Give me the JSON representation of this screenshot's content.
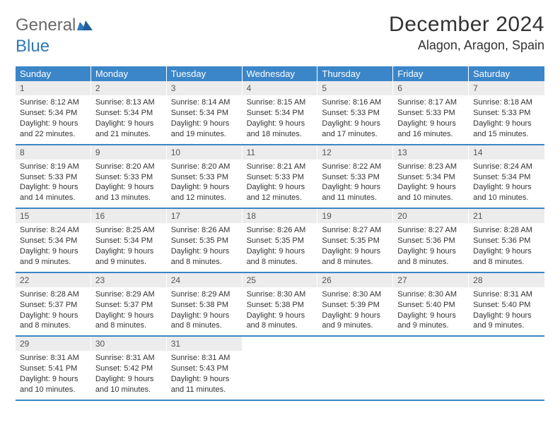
{
  "logo": {
    "text1": "General",
    "text2": "Blue"
  },
  "title": "December 2024",
  "location": "Alagon, Aragon, Spain",
  "colors": {
    "header_bg": "#3b86c8",
    "header_text": "#ffffff",
    "page_bg": "#ffffff",
    "daynum_bg": "#ececec",
    "text": "#333333",
    "logo_gray": "#6a6a6a",
    "logo_blue": "#2f77bb",
    "row_border": "#3b86c8"
  },
  "typography": {
    "title_fontsize": 30,
    "location_fontsize": 18,
    "dow_fontsize": 13,
    "body_fontsize": 11,
    "logo_fontsize": 24
  },
  "calendar": {
    "type": "table",
    "columns": [
      "Sunday",
      "Monday",
      "Tuesday",
      "Wednesday",
      "Thursday",
      "Friday",
      "Saturday"
    ],
    "weeks": [
      [
        {
          "n": "1",
          "sunrise": "Sunrise: 8:12 AM",
          "sunset": "Sunset: 5:34 PM",
          "daylight": "Daylight: 9 hours and 22 minutes."
        },
        {
          "n": "2",
          "sunrise": "Sunrise: 8:13 AM",
          "sunset": "Sunset: 5:34 PM",
          "daylight": "Daylight: 9 hours and 21 minutes."
        },
        {
          "n": "3",
          "sunrise": "Sunrise: 8:14 AM",
          "sunset": "Sunset: 5:34 PM",
          "daylight": "Daylight: 9 hours and 19 minutes."
        },
        {
          "n": "4",
          "sunrise": "Sunrise: 8:15 AM",
          "sunset": "Sunset: 5:34 PM",
          "daylight": "Daylight: 9 hours and 18 minutes."
        },
        {
          "n": "5",
          "sunrise": "Sunrise: 8:16 AM",
          "sunset": "Sunset: 5:33 PM",
          "daylight": "Daylight: 9 hours and 17 minutes."
        },
        {
          "n": "6",
          "sunrise": "Sunrise: 8:17 AM",
          "sunset": "Sunset: 5:33 PM",
          "daylight": "Daylight: 9 hours and 16 minutes."
        },
        {
          "n": "7",
          "sunrise": "Sunrise: 8:18 AM",
          "sunset": "Sunset: 5:33 PM",
          "daylight": "Daylight: 9 hours and 15 minutes."
        }
      ],
      [
        {
          "n": "8",
          "sunrise": "Sunrise: 8:19 AM",
          "sunset": "Sunset: 5:33 PM",
          "daylight": "Daylight: 9 hours and 14 minutes."
        },
        {
          "n": "9",
          "sunrise": "Sunrise: 8:20 AM",
          "sunset": "Sunset: 5:33 PM",
          "daylight": "Daylight: 9 hours and 13 minutes."
        },
        {
          "n": "10",
          "sunrise": "Sunrise: 8:20 AM",
          "sunset": "Sunset: 5:33 PM",
          "daylight": "Daylight: 9 hours and 12 minutes."
        },
        {
          "n": "11",
          "sunrise": "Sunrise: 8:21 AM",
          "sunset": "Sunset: 5:33 PM",
          "daylight": "Daylight: 9 hours and 12 minutes."
        },
        {
          "n": "12",
          "sunrise": "Sunrise: 8:22 AM",
          "sunset": "Sunset: 5:33 PM",
          "daylight": "Daylight: 9 hours and 11 minutes."
        },
        {
          "n": "13",
          "sunrise": "Sunrise: 8:23 AM",
          "sunset": "Sunset: 5:34 PM",
          "daylight": "Daylight: 9 hours and 10 minutes."
        },
        {
          "n": "14",
          "sunrise": "Sunrise: 8:24 AM",
          "sunset": "Sunset: 5:34 PM",
          "daylight": "Daylight: 9 hours and 10 minutes."
        }
      ],
      [
        {
          "n": "15",
          "sunrise": "Sunrise: 8:24 AM",
          "sunset": "Sunset: 5:34 PM",
          "daylight": "Daylight: 9 hours and 9 minutes."
        },
        {
          "n": "16",
          "sunrise": "Sunrise: 8:25 AM",
          "sunset": "Sunset: 5:34 PM",
          "daylight": "Daylight: 9 hours and 9 minutes."
        },
        {
          "n": "17",
          "sunrise": "Sunrise: 8:26 AM",
          "sunset": "Sunset: 5:35 PM",
          "daylight": "Daylight: 9 hours and 8 minutes."
        },
        {
          "n": "18",
          "sunrise": "Sunrise: 8:26 AM",
          "sunset": "Sunset: 5:35 PM",
          "daylight": "Daylight: 9 hours and 8 minutes."
        },
        {
          "n": "19",
          "sunrise": "Sunrise: 8:27 AM",
          "sunset": "Sunset: 5:35 PM",
          "daylight": "Daylight: 9 hours and 8 minutes."
        },
        {
          "n": "20",
          "sunrise": "Sunrise: 8:27 AM",
          "sunset": "Sunset: 5:36 PM",
          "daylight": "Daylight: 9 hours and 8 minutes."
        },
        {
          "n": "21",
          "sunrise": "Sunrise: 8:28 AM",
          "sunset": "Sunset: 5:36 PM",
          "daylight": "Daylight: 9 hours and 8 minutes."
        }
      ],
      [
        {
          "n": "22",
          "sunrise": "Sunrise: 8:28 AM",
          "sunset": "Sunset: 5:37 PM",
          "daylight": "Daylight: 9 hours and 8 minutes."
        },
        {
          "n": "23",
          "sunrise": "Sunrise: 8:29 AM",
          "sunset": "Sunset: 5:37 PM",
          "daylight": "Daylight: 9 hours and 8 minutes."
        },
        {
          "n": "24",
          "sunrise": "Sunrise: 8:29 AM",
          "sunset": "Sunset: 5:38 PM",
          "daylight": "Daylight: 9 hours and 8 minutes."
        },
        {
          "n": "25",
          "sunrise": "Sunrise: 8:30 AM",
          "sunset": "Sunset: 5:38 PM",
          "daylight": "Daylight: 9 hours and 8 minutes."
        },
        {
          "n": "26",
          "sunrise": "Sunrise: 8:30 AM",
          "sunset": "Sunset: 5:39 PM",
          "daylight": "Daylight: 9 hours and 9 minutes."
        },
        {
          "n": "27",
          "sunrise": "Sunrise: 8:30 AM",
          "sunset": "Sunset: 5:40 PM",
          "daylight": "Daylight: 9 hours and 9 minutes."
        },
        {
          "n": "28",
          "sunrise": "Sunrise: 8:31 AM",
          "sunset": "Sunset: 5:40 PM",
          "daylight": "Daylight: 9 hours and 9 minutes."
        }
      ],
      [
        {
          "n": "29",
          "sunrise": "Sunrise: 8:31 AM",
          "sunset": "Sunset: 5:41 PM",
          "daylight": "Daylight: 9 hours and 10 minutes."
        },
        {
          "n": "30",
          "sunrise": "Sunrise: 8:31 AM",
          "sunset": "Sunset: 5:42 PM",
          "daylight": "Daylight: 9 hours and 10 minutes."
        },
        {
          "n": "31",
          "sunrise": "Sunrise: 8:31 AM",
          "sunset": "Sunset: 5:43 PM",
          "daylight": "Daylight: 9 hours and 11 minutes."
        },
        null,
        null,
        null,
        null
      ]
    ]
  }
}
